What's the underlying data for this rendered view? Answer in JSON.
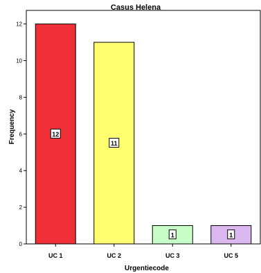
{
  "chart_data": {
    "type": "bar",
    "title": "Casus Helena",
    "xlabel": "Urgentiecode",
    "ylabel": "Frequency",
    "categories": [
      "UC 1",
      "UC 2",
      "UC 3",
      "UC 5"
    ],
    "values": [
      12,
      11,
      1,
      1
    ],
    "data_labels": [
      "12",
      "11",
      "1",
      "1"
    ],
    "bar_colors": [
      "#f03038",
      "#ffff70",
      "#c8ffc8",
      "#dcb8f0"
    ],
    "ylim": [
      0,
      13
    ],
    "yticks": [
      0,
      2,
      4,
      6,
      8,
      10,
      12
    ],
    "grid": false,
    "legend": "none"
  }
}
